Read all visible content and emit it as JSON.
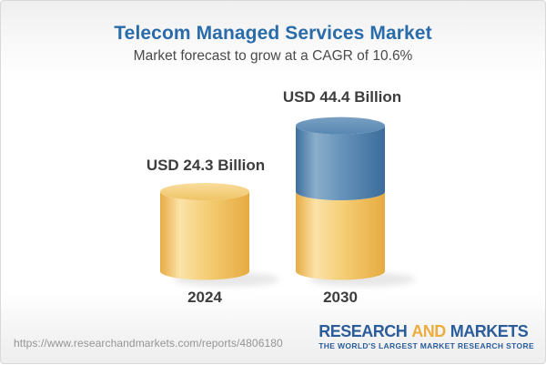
{
  "chart_data": {
    "type": "bar",
    "variant": "3d-stacked-cylinders",
    "title": "Telecom Managed Services Market",
    "subtitle": "Market forecast to grow at a CAGR of 10.6%",
    "cagr_pct": 10.6,
    "unit": "USD Billion",
    "categories": [
      "2024",
      "2030"
    ],
    "values": [
      24.3,
      44.4
    ],
    "value_labels": [
      "USD 24.3 Billion",
      "USD 44.4 Billion"
    ],
    "base_value": 24.3,
    "stacked_2030": {
      "base_gold": 24.3,
      "growth_blue": 20.1
    },
    "legend_position": "none",
    "grid": false,
    "colors": {
      "gold_body": [
        "#E7AC44",
        "#FBE2A8",
        "#F4CC72",
        "#E6AB41"
      ],
      "gold_top": [
        "#F9DD9C",
        "#EFC466"
      ],
      "blue_body": [
        "#3E6F9F",
        "#8AAECB",
        "#6290B8",
        "#3C6C9B"
      ],
      "blue_top": [
        "#79A0C2",
        "#5787B2"
      ],
      "label_text": "#3D3D3D",
      "title_text": "#2A6CA9"
    }
  },
  "footer": {
    "source_url": "https://www.researchandmarkets.com/reports/4806180",
    "logo": {
      "part1": "RESEARCH",
      "part2": "AND",
      "part3": "MARKETS",
      "tagline": "THE WORLD'S LARGEST MARKET RESEARCH STORE",
      "blue": "#2B5D9B",
      "gold": "#EBAD3F"
    }
  }
}
